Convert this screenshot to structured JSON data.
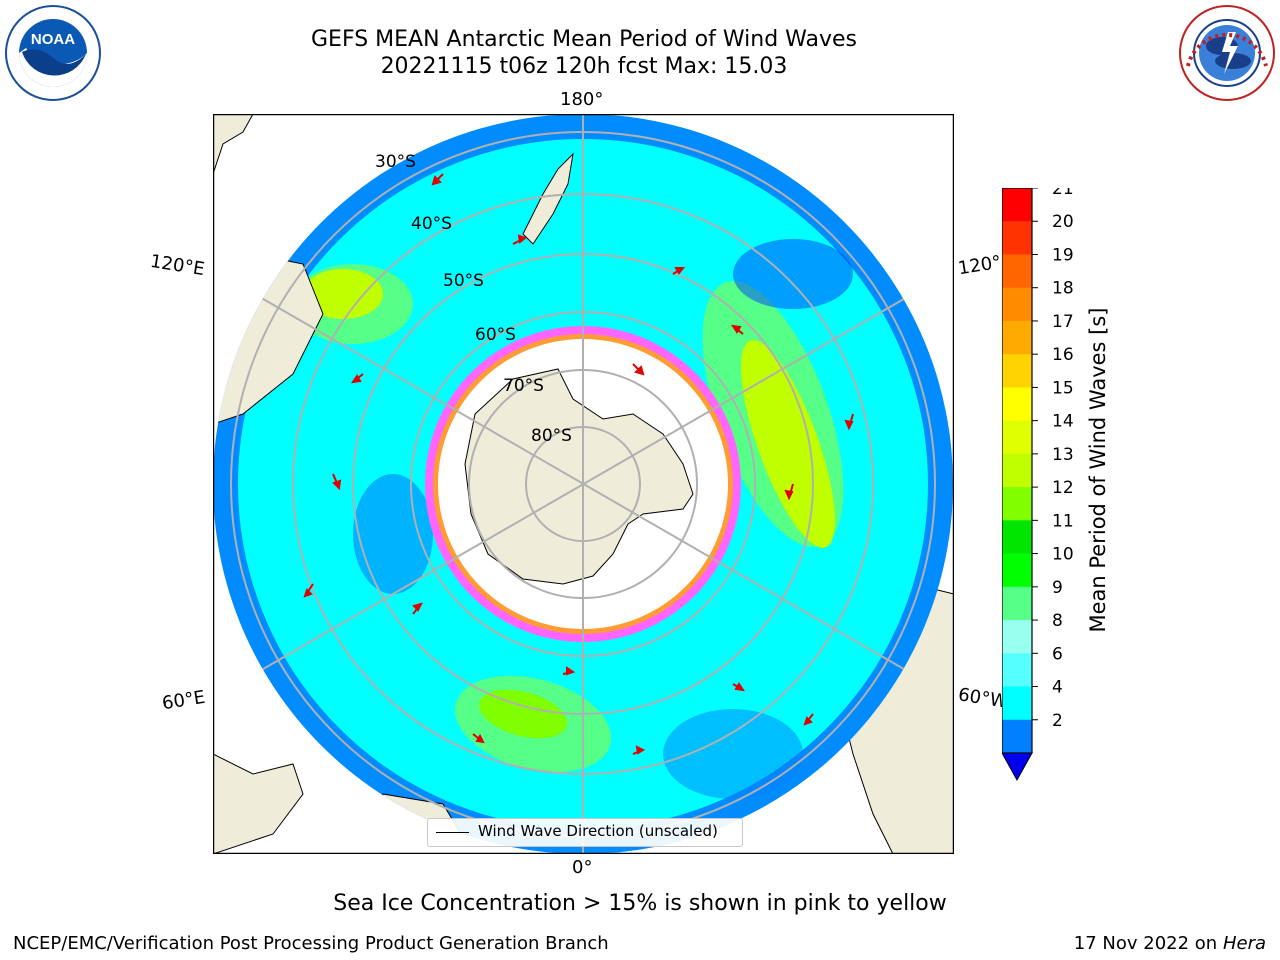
{
  "title_line1": "GEFS MEAN Antarctic Mean Period of Wind Waves",
  "title_line2": "20221115 t06z 120h fcst   Max: 15.03",
  "lon_labels": {
    "top": "180°",
    "bottom": "0°",
    "upper_left": "120°E",
    "upper_right": "120°",
    "lower_left": "60°E",
    "lower_right": "60°W"
  },
  "lat_labels": [
    "30°S",
    "40°S",
    "50°S",
    "60°S",
    "70°S",
    "80°S"
  ],
  "legend_label": "Wind Wave Direction (unscaled)",
  "colorbar": {
    "title": "Mean Period of Wind Waves [s]",
    "ticks": [
      "21",
      "20",
      "19",
      "18",
      "17",
      "16",
      "15",
      "14",
      "13",
      "12",
      "11",
      "10",
      "9",
      "8",
      "6",
      "4",
      "2"
    ],
    "colors": [
      "#ff0000",
      "#ff3300",
      "#ff6600",
      "#ff8c00",
      "#ffaa00",
      "#ffd200",
      "#ffff00",
      "#e0ff00",
      "#c0ff00",
      "#80ff00",
      "#00e600",
      "#00ff00",
      "#55ff88",
      "#99ffee",
      "#55ffff",
      "#00ffff",
      "#0080ff"
    ],
    "extend_color": "#0000ee"
  },
  "footnote": "Sea Ice Concentration > 15% is shown in pink to yellow",
  "credit": "NCEP/EMC/Verification Post Processing Product Generation Branch",
  "date": "17 Nov 2022 on",
  "host": "Hera",
  "logos": {
    "noaa": "NOAA",
    "nws": "NATIONAL WEATHER SERVICE"
  }
}
